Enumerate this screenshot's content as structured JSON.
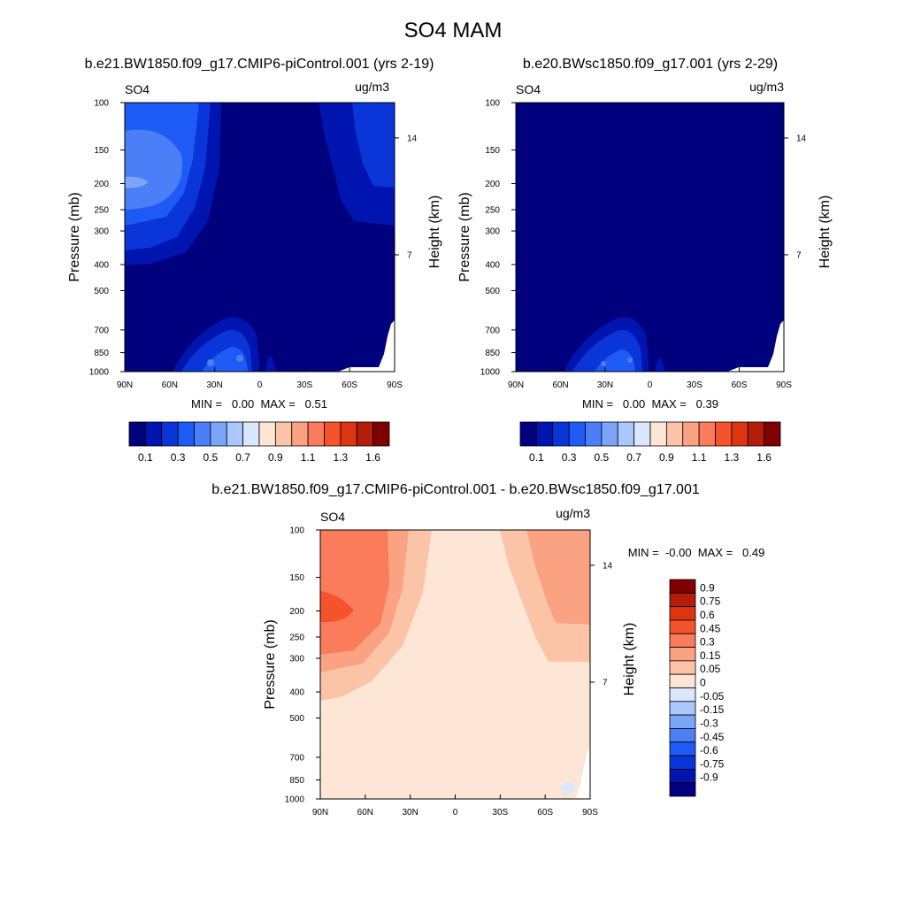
{
  "figure_title": "SO4 MAM",
  "chart_data": [
    {
      "type": "heatmap",
      "title": "b.e21.BW1850.f09_g17.CMIP6-piControl.001 (yrs 2-19)",
      "left_label": "SO4",
      "right_label": "ug/m3",
      "ylabel": "Pressure (mb)",
      "y2label": "Height (km)",
      "x_ticks": [
        "90N",
        "60N",
        "30N",
        "0",
        "30S",
        "60S",
        "90S"
      ],
      "y_ticks": [
        100,
        150,
        200,
        250,
        300,
        400,
        500,
        700,
        850,
        1000
      ],
      "y2_ticks": [
        14,
        7
      ],
      "y_scale": "log",
      "ylim": [
        1000,
        100
      ],
      "xlim": [
        90,
        -90
      ],
      "stats_text": "MIN =   0.00  MAX =   0.51",
      "min": 0.0,
      "max": 0.51
    },
    {
      "type": "heatmap",
      "title": "b.e20.BWsc1850.f09_g17.001 (yrs 2-29)",
      "left_label": "SO4",
      "right_label": "ug/m3",
      "ylabel": "Pressure (mb)",
      "y2label": "Height (km)",
      "x_ticks": [
        "90N",
        "60N",
        "30N",
        "0",
        "30S",
        "60S",
        "90S"
      ],
      "y_ticks": [
        100,
        150,
        200,
        250,
        300,
        400,
        500,
        700,
        850,
        1000
      ],
      "y2_ticks": [
        14,
        7
      ],
      "y_scale": "log",
      "ylim": [
        1000,
        100
      ],
      "xlim": [
        90,
        -90
      ],
      "stats_text": "MIN =   0.00  MAX =   0.39",
      "min": 0.0,
      "max": 0.39
    },
    {
      "type": "heatmap",
      "title": "b.e21.BW1850.f09_g17.CMIP6-piControl.001 - b.e20.BWsc1850.f09_g17.001",
      "left_label": "SO4",
      "right_label": "ug/m3",
      "ylabel": "Pressure (mb)",
      "y2label": "Height (km)",
      "x_ticks": [
        "90N",
        "60N",
        "30N",
        "0",
        "30S",
        "60S",
        "90S"
      ],
      "y_ticks": [
        100,
        150,
        200,
        250,
        300,
        400,
        500,
        700,
        850,
        1000
      ],
      "y2_ticks": [
        14,
        7
      ],
      "y_scale": "log",
      "ylim": [
        1000,
        100
      ],
      "xlim": [
        90,
        -90
      ],
      "stats_text": "MIN =  -0.00  MAX =   0.49",
      "min": -0.0,
      "max": 0.49
    }
  ],
  "colorbar_abs": {
    "colors": [
      "#00007f",
      "#0014b0",
      "#0a35d8",
      "#1e5af5",
      "#4a7ff7",
      "#7aa5f9",
      "#aac8fb",
      "#dbe7fd",
      "#fde6d6",
      "#fcc4a7",
      "#fba283",
      "#fa7c5a",
      "#f5532b",
      "#dd3412",
      "#b31d0a",
      "#7f0000"
    ],
    "labels": [
      "0.1",
      "0.3",
      "0.5",
      "0.7",
      "0.9",
      "1.1",
      "1.3",
      "1.6"
    ]
  },
  "colorbar_diff": {
    "colors": [
      "#7f0000",
      "#b31d0a",
      "#dd3412",
      "#f5532b",
      "#fa7c5a",
      "#fba283",
      "#fcc4a7",
      "#fde6d6",
      "#dbe7fd",
      "#aac8fb",
      "#7aa5f9",
      "#4a7ff7",
      "#1e5af5",
      "#0a35d8",
      "#0014b0",
      "#00007f"
    ],
    "labels": [
      "0.9",
      "0.75",
      "0.6",
      "0.45",
      "0.3",
      "0.15",
      "0.05",
      "0",
      "-0.05",
      "-0.15",
      "-0.3",
      "-0.45",
      "-0.6",
      "-0.75",
      "-0.9"
    ]
  }
}
